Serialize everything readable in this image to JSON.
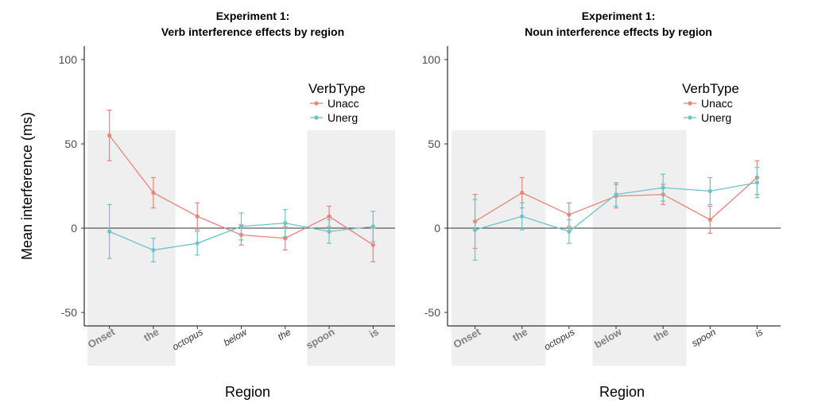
{
  "chart_data": [
    {
      "type": "line",
      "title": "Experiment  1:",
      "subtitle": "Verb interference effects by region",
      "xlabel": "Region",
      "ylabel": "Mean interference (ms)",
      "ylim": [
        -58,
        108
      ],
      "yticks": [
        -50,
        0,
        50,
        100
      ],
      "categories": [
        "Onset",
        "the",
        "octopus",
        "below",
        "the",
        "spoon",
        "is"
      ],
      "category_style": [
        "bold",
        "bold",
        "italic",
        "italic",
        "italic",
        "bold",
        "bold"
      ],
      "shaded_regions": [
        [
          0,
          1
        ],
        [
          5,
          6
        ]
      ],
      "legend_title": "VerbType",
      "legend_position": "top-right",
      "series": [
        {
          "name": "Unacc",
          "color": "#e8847a",
          "values": [
            55,
            21,
            7,
            -4,
            -6,
            7,
            -10
          ],
          "error": [
            15,
            9,
            8,
            6,
            7,
            6,
            10
          ]
        },
        {
          "name": "Unerg",
          "color": "#6cc4c6",
          "values": [
            -2,
            -13,
            -9,
            1,
            3,
            -2,
            1
          ],
          "error": [
            16,
            7,
            7,
            8,
            8,
            7,
            9
          ]
        }
      ]
    },
    {
      "type": "line",
      "title": "Experiment  1:",
      "subtitle": "Noun interference effects by region",
      "xlabel": "Region",
      "ylabel": "",
      "ylim": [
        -58,
        108
      ],
      "yticks": [
        -50,
        0,
        50,
        100
      ],
      "categories": [
        "Onset",
        "the",
        "octopus",
        "below",
        "the",
        "spoon",
        "is"
      ],
      "category_style": [
        "bold",
        "bold",
        "italic",
        "bold",
        "bold",
        "italic",
        "italic"
      ],
      "shaded_regions": [
        [
          0,
          1
        ],
        [
          3,
          4
        ]
      ],
      "legend_title": "VerbType",
      "legend_position": "top-right",
      "series": [
        {
          "name": "Unacc",
          "color": "#e8847a",
          "values": [
            4,
            21,
            8,
            19,
            20,
            5,
            30
          ],
          "error": [
            16,
            9,
            7,
            7,
            6,
            8,
            10
          ]
        },
        {
          "name": "Unerg",
          "color": "#6cc4c6",
          "values": [
            -1,
            7,
            -2,
            20,
            24,
            22,
            27
          ],
          "error": [
            18,
            8,
            7,
            7,
            8,
            8,
            9
          ]
        }
      ]
    }
  ]
}
